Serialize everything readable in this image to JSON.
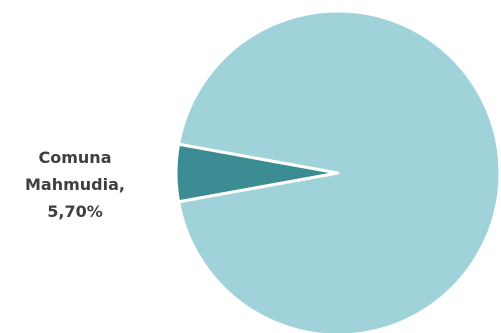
{
  "chart_data": {
    "type": "pie",
    "title": "",
    "slices": [
      {
        "name": "Comuna Mahmudia",
        "value": 5.7,
        "color": "#3b8c93",
        "label_lines": [
          "Comuna",
          "Mahmudia,",
          "5,70%"
        ]
      },
      {
        "name": "",
        "value": 94.3,
        "color": "#a0d3d9",
        "label_lines": []
      }
    ],
    "legend": "none"
  }
}
